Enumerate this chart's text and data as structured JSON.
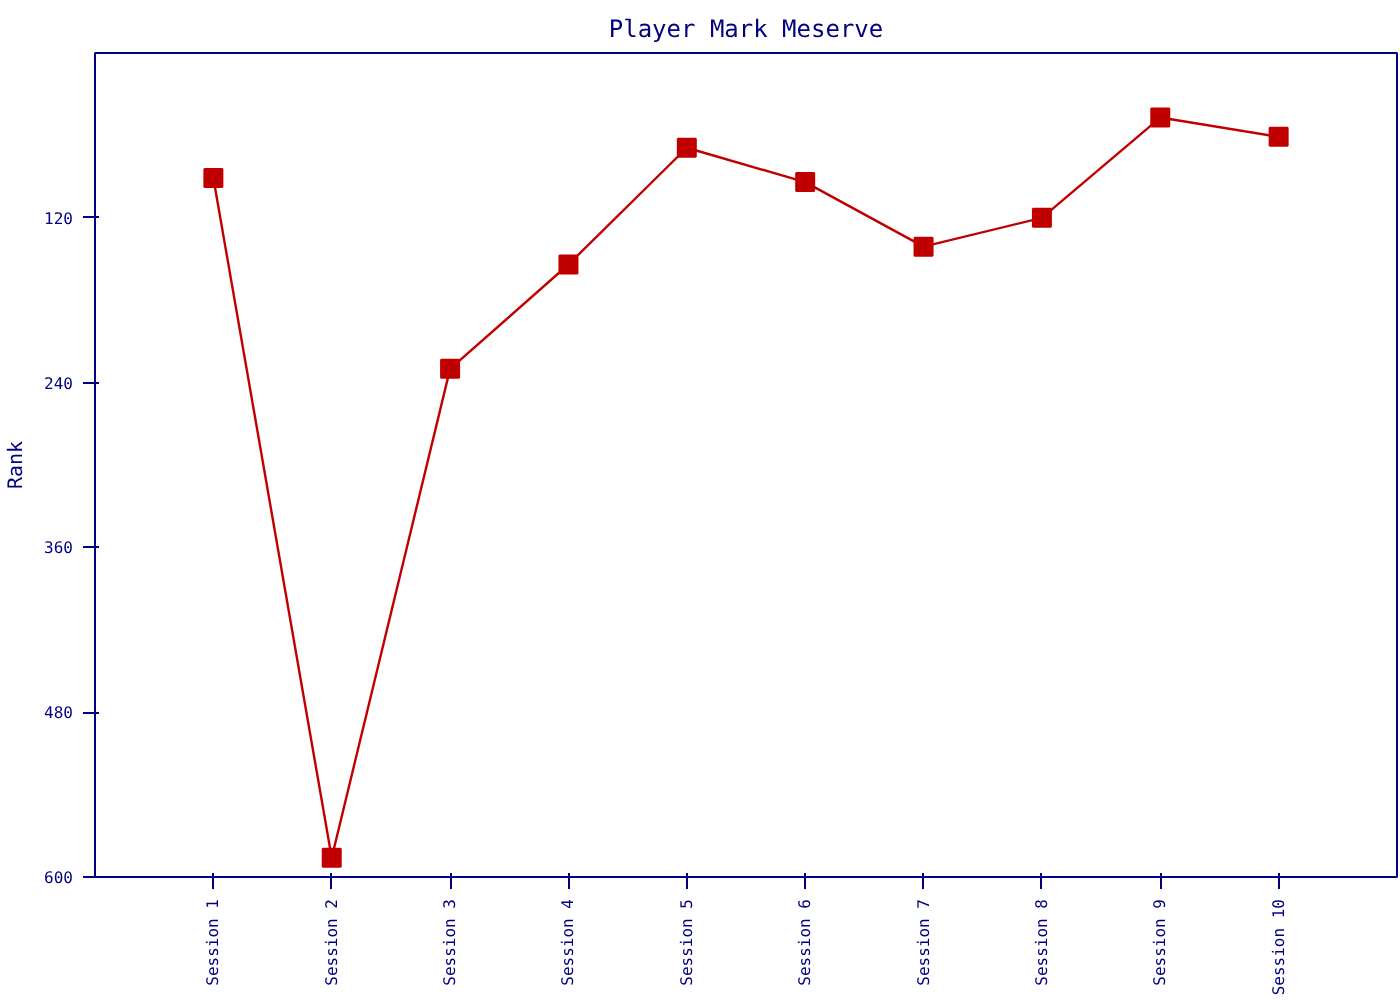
{
  "chart_data": {
    "type": "line",
    "title": "Player Mark Meserve",
    "ylabel": "Rank",
    "categories": [
      "Session 1",
      "Session 2",
      "Session 3",
      "Session 4",
      "Session 5",
      "Session 6",
      "Session 7",
      "Session 8",
      "Session 9",
      "Session 10"
    ],
    "series": [
      {
        "color": "#c00000",
        "values": [
          91,
          586,
          230,
          154,
          69,
          94,
          141,
          120,
          47,
          61
        ]
      }
    ],
    "ylim": [
      600,
      0
    ],
    "yticks": [
      120,
      240,
      360,
      480,
      600
    ],
    "grid": false,
    "marker": "square",
    "line_style": "solid"
  }
}
